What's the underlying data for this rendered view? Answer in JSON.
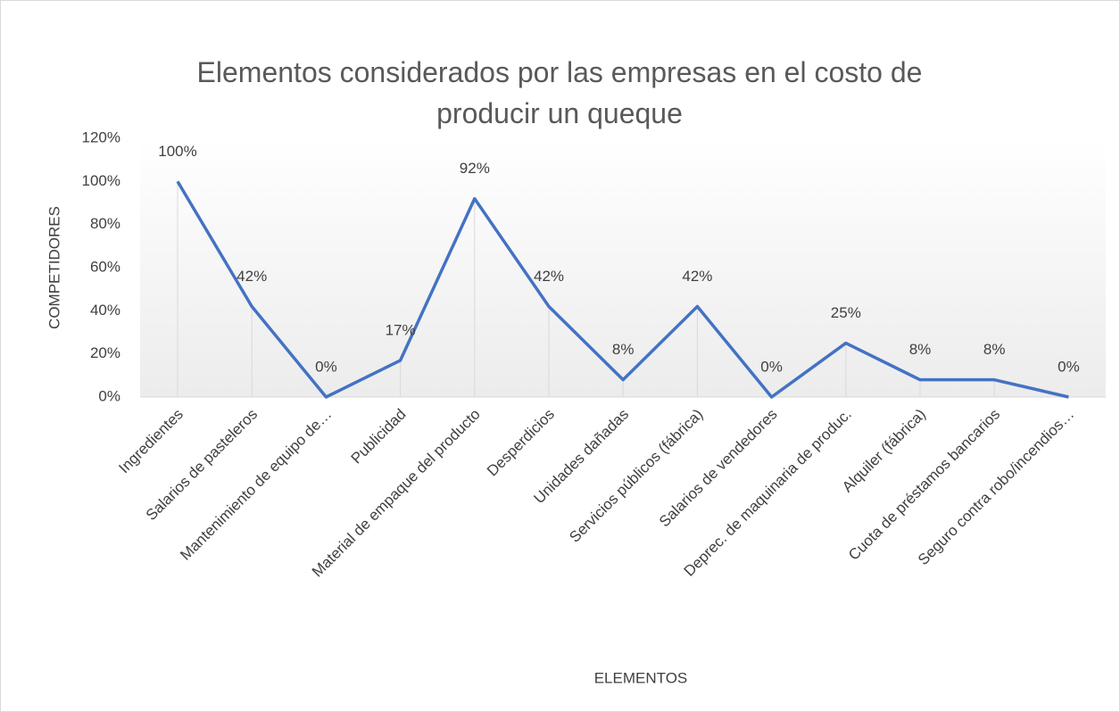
{
  "chart_data": {
    "type": "line",
    "title": "Elementos considerados por las empresas en el costo de producir un queque",
    "x_label": "ELEMENTOS",
    "y_label": "COMPETIDORES",
    "categories": [
      "Ingredientes",
      "Salarios de pasteleros",
      "Mantenimiento de equipo de…",
      "Publicidad",
      "Material de empaque del producto",
      "Desperdicios",
      "Unidades dañadas",
      "Servicios públicos (fábrica)",
      "Salarios de vendedores",
      "Deprec. de maquinaria de produc.",
      "Alquiler (fábrica)",
      "Cuota de préstamos bancarios",
      "Seguro contra robo/incendios…"
    ],
    "series": [
      {
        "name": "COMPETIDORES",
        "color": "#4472c4",
        "values": [
          100,
          42,
          0,
          17,
          92,
          42,
          8,
          42,
          0,
          25,
          8,
          8,
          0
        ],
        "value_labels": [
          "100%",
          "42%",
          "0%",
          "17%",
          "92%",
          "42%",
          "8%",
          "42%",
          "0%",
          "25%",
          "8%",
          "8%",
          "0%"
        ]
      }
    ],
    "ylim": [
      0,
      120
    ],
    "yticks": [
      {
        "value": 0,
        "label": "0%"
      },
      {
        "value": 20,
        "label": "20%"
      },
      {
        "value": 40,
        "label": "40%"
      },
      {
        "value": 60,
        "label": "60%"
      },
      {
        "value": 80,
        "label": "80%"
      },
      {
        "value": 100,
        "label": "100%"
      },
      {
        "value": 120,
        "label": "120%"
      }
    ],
    "drop_lines": true
  }
}
